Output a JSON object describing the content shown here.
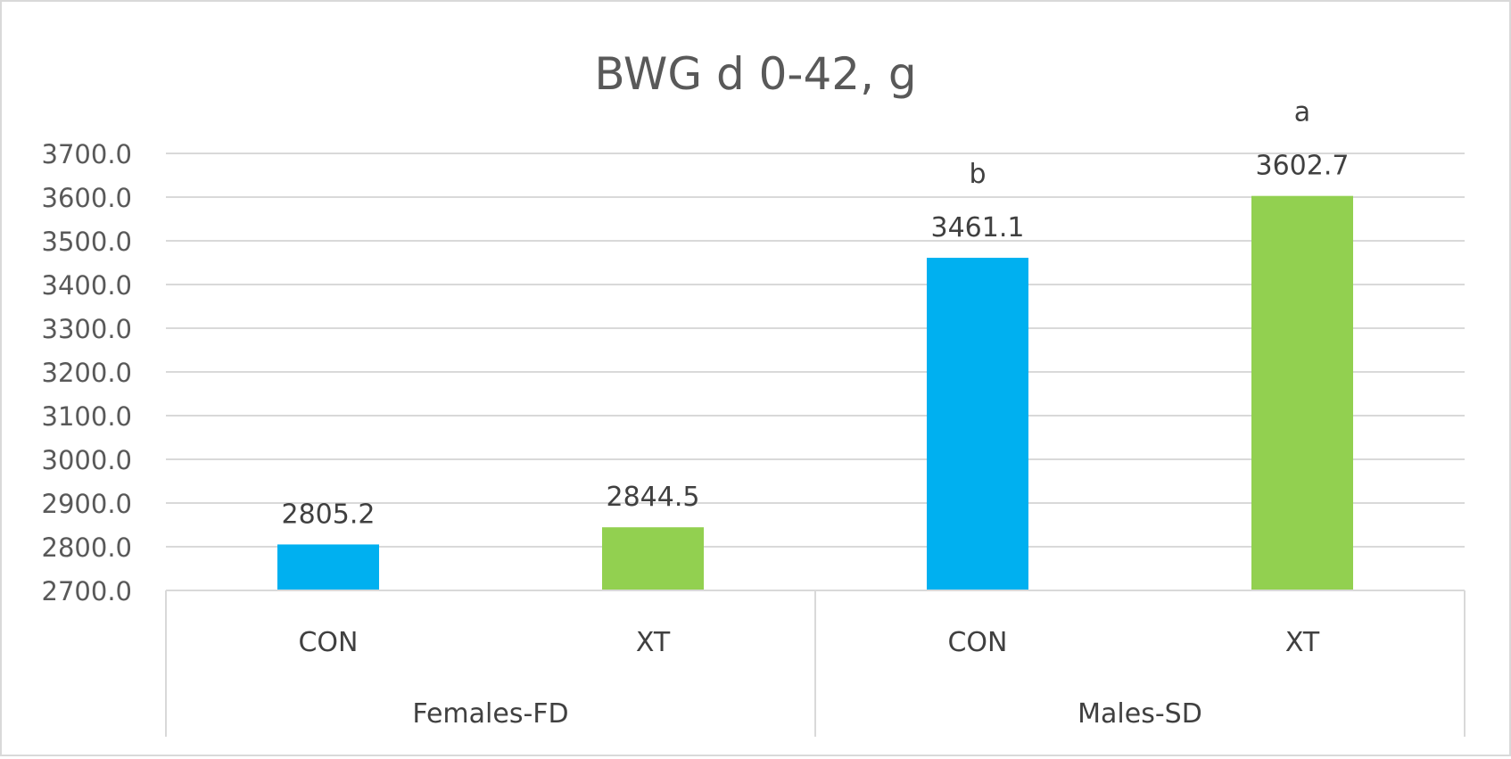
{
  "chart_data": {
    "type": "bar",
    "title": "BWG d 0-42, g",
    "xlabel": "",
    "ylabel": "",
    "ylim": [
      2700,
      3700
    ],
    "y_tick_step": 100,
    "y_tick_labels": [
      "2700.0",
      "2800.0",
      "2900.0",
      "3000.0",
      "3100.0",
      "3200.0",
      "3300.0",
      "3400.0",
      "3500.0",
      "3600.0",
      "3700.0"
    ],
    "grid": true,
    "legend": "none",
    "groups": [
      {
        "name": "Females-FD",
        "bars": [
          {
            "category": "CON",
            "value": 2805.2,
            "label": "2805.2",
            "letter": "",
            "color": "#00b0f0"
          },
          {
            "category": "XT",
            "value": 2844.5,
            "label": "2844.5",
            "letter": "",
            "color": "#92d050"
          }
        ]
      },
      {
        "name": "Males-SD",
        "bars": [
          {
            "category": "CON",
            "value": 3461.1,
            "label": "3461.1",
            "letter": "b",
            "color": "#00b0f0"
          },
          {
            "category": "XT",
            "value": 3602.7,
            "label": "3602.7",
            "letter": "a",
            "color": "#92d050"
          }
        ]
      }
    ]
  }
}
